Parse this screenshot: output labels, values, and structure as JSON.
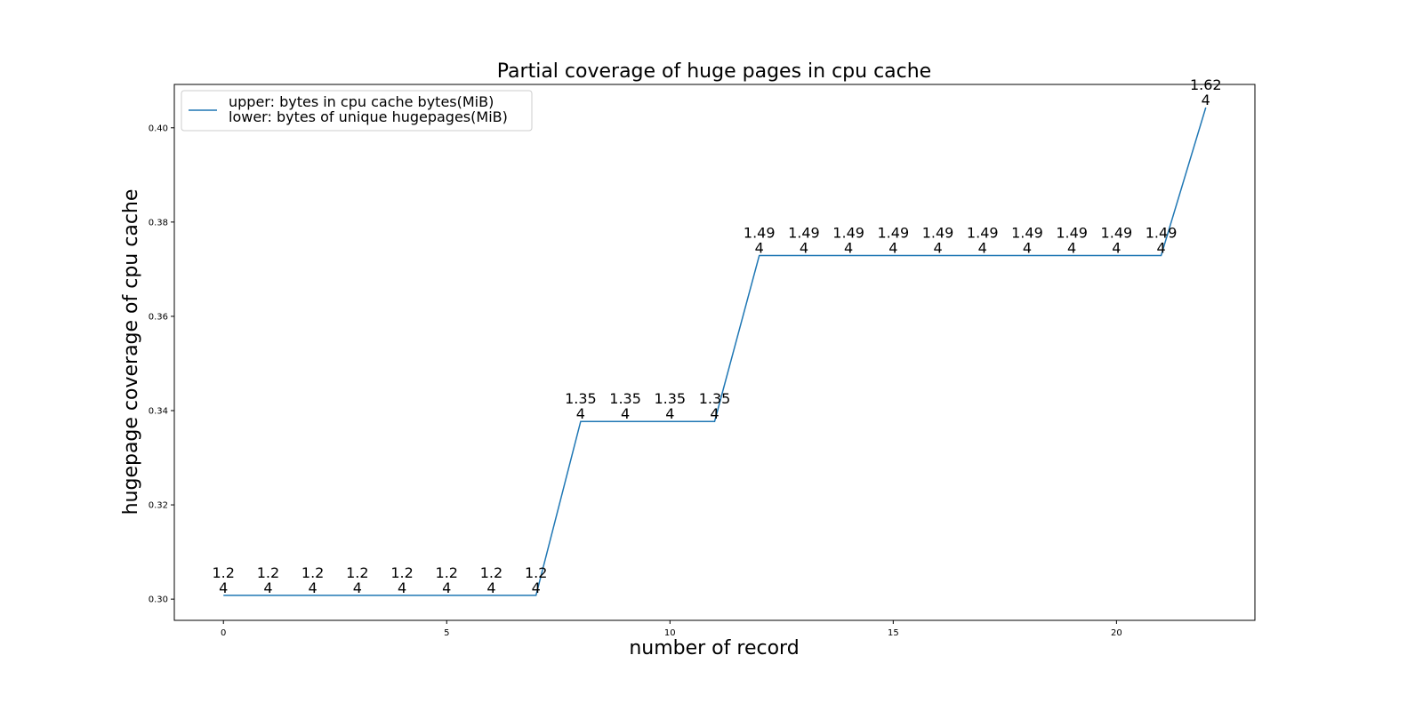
{
  "chart_data": {
    "type": "line",
    "title": "Partial coverage of huge pages in cpu cache",
    "xlabel": "number of record",
    "ylabel": "hugepage coverage of cpu cache",
    "xlim": [
      -1.1,
      23.1
    ],
    "ylim": [
      0.2955,
      0.4092
    ],
    "xticks": [
      0,
      5,
      10,
      15,
      20
    ],
    "yticks": [
      0.3,
      0.32,
      0.34,
      0.36,
      0.38,
      0.4
    ],
    "ytick_labels": [
      "0.30",
      "0.32",
      "0.34",
      "0.36",
      "0.38",
      "0.40"
    ],
    "grid": false,
    "legend_position": "top-left",
    "legend": [
      "upper: bytes in cpu cache bytes(MiB)",
      "lower: bytes of unique hugepages(MiB)"
    ],
    "series": [
      {
        "color": "#1f77b4",
        "x": [
          0,
          1,
          2,
          3,
          4,
          5,
          6,
          7,
          8,
          9,
          10,
          11,
          12,
          13,
          14,
          15,
          16,
          17,
          18,
          19,
          20,
          21,
          22
        ],
        "y": [
          0.3008,
          0.3008,
          0.3008,
          0.3008,
          0.3008,
          0.3008,
          0.3008,
          0.3008,
          0.3377,
          0.3377,
          0.3377,
          0.3377,
          0.3729,
          0.3729,
          0.3729,
          0.3729,
          0.3729,
          0.3729,
          0.3729,
          0.3729,
          0.3729,
          0.3729,
          0.4043
        ],
        "upper": [
          "1.2",
          "1.2",
          "1.2",
          "1.2",
          "1.2",
          "1.2",
          "1.2",
          "1.2",
          "1.35",
          "1.35",
          "1.35",
          "1.35",
          "1.49",
          "1.49",
          "1.49",
          "1.49",
          "1.49",
          "1.49",
          "1.49",
          "1.49",
          "1.49",
          "1.49",
          "1.62"
        ],
        "lower": [
          "4",
          "4",
          "4",
          "4",
          "4",
          "4",
          "4",
          "4",
          "4",
          "4",
          "4",
          "4",
          "4",
          "4",
          "4",
          "4",
          "4",
          "4",
          "4",
          "4",
          "4",
          "4",
          "4"
        ]
      }
    ]
  }
}
